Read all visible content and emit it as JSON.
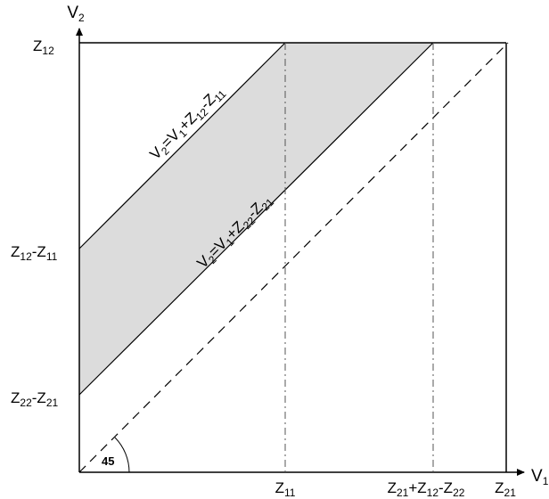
{
  "diagram": {
    "axes": {
      "x_label": {
        "main": "V",
        "sub": "1"
      },
      "y_label": {
        "main": "V",
        "sub": "2"
      }
    },
    "y_ticks": [
      {
        "id": "z12",
        "parts": [
          [
            "Z",
            "main"
          ],
          [
            "12",
            "sub"
          ]
        ]
      },
      {
        "id": "z12-z11",
        "parts": [
          [
            "Z",
            "main"
          ],
          [
            "12",
            "sub"
          ],
          [
            "-",
            "main"
          ],
          [
            "Z",
            "main"
          ],
          [
            "11",
            "sub"
          ]
        ]
      },
      {
        "id": "z22-z21",
        "parts": [
          [
            "Z",
            "main"
          ],
          [
            "22",
            "sub"
          ],
          [
            "-",
            "main"
          ],
          [
            "Z",
            "main"
          ],
          [
            "21",
            "sub"
          ]
        ]
      }
    ],
    "x_ticks": [
      {
        "id": "z11",
        "parts": [
          [
            "Z",
            "main"
          ],
          [
            "11",
            "sub"
          ]
        ]
      },
      {
        "id": "z21+z12-z22",
        "parts": [
          [
            "Z",
            "main"
          ],
          [
            "21",
            "sub"
          ],
          [
            "+",
            "main"
          ],
          [
            "Z",
            "main"
          ],
          [
            "12",
            "sub"
          ],
          [
            "-",
            "main"
          ],
          [
            "Z",
            "main"
          ],
          [
            "22",
            "sub"
          ]
        ]
      },
      {
        "id": "z21",
        "parts": [
          [
            "Z",
            "main"
          ],
          [
            "21",
            "sub"
          ]
        ]
      }
    ],
    "upper_line_label": {
      "parts": [
        [
          "V",
          "main"
        ],
        [
          "2",
          "sub"
        ],
        [
          "=",
          "main"
        ],
        [
          "V",
          "main"
        ],
        [
          "1",
          "sub"
        ],
        [
          "+",
          "main"
        ],
        [
          "Z",
          "main"
        ],
        [
          "12",
          "sub"
        ],
        [
          "-",
          "main"
        ],
        [
          "Z",
          "main"
        ],
        [
          "11",
          "sub"
        ]
      ]
    },
    "lower_line_label": {
      "parts": [
        [
          "V",
          "main"
        ],
        [
          "2",
          "sub"
        ],
        [
          "=",
          "main"
        ],
        [
          "V",
          "main"
        ],
        [
          "1",
          "sub"
        ],
        [
          "+",
          "main"
        ],
        [
          "Z",
          "main"
        ],
        [
          "22",
          "sub"
        ],
        [
          "-",
          "main"
        ],
        [
          "Z",
          "main"
        ],
        [
          "21",
          "sub"
        ]
      ]
    },
    "angle_label": "45",
    "colors": {
      "shade": "#dcdcdc",
      "line": "#000000"
    }
  }
}
